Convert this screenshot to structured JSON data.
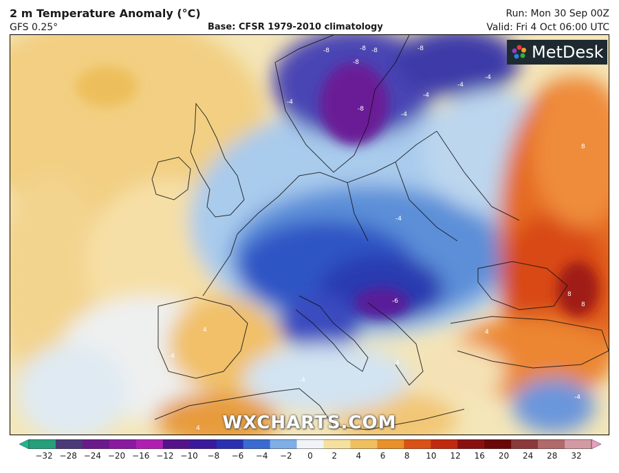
{
  "header": {
    "title": "2 m Temperature Anomaly (°C)",
    "model": "GFS 0.25°",
    "base": "Base: CFSR 1979-2010 climatology",
    "run": "Run: Mon 30 Sep 00Z",
    "valid": "Valid: Fri 4 Oct 06:00 UTC"
  },
  "brand": {
    "label": "MetDesk"
  },
  "watermark": {
    "label": "WXCHARTS.COM"
  },
  "colorbar": {
    "ticks": [
      "−32",
      "−28",
      "−24",
      "−20",
      "−16",
      "−12",
      "−10",
      "−8",
      "−6",
      "−4",
      "−2",
      "0",
      "2",
      "4",
      "6",
      "8",
      "10",
      "12",
      "16",
      "20",
      "24",
      "28",
      "32"
    ],
    "colors": [
      "#1db892",
      "#25a07a",
      "#4a3a78",
      "#6a1a8a",
      "#8a1aa0",
      "#b020b0",
      "#55138a",
      "#3a1a9a",
      "#2a30b0",
      "#3b6ad0",
      "#80aee6",
      "#f0f4f8",
      "#f5e0a0",
      "#efc060",
      "#e8902a",
      "#d85218",
      "#c02a10",
      "#8a1010",
      "#6a0808",
      "#8a3a3a",
      "#b06a6a",
      "#d49aa4",
      "#e8a0c0"
    ]
  },
  "contour_labels": [
    "-8",
    "-8",
    "-8",
    "-8",
    "-8",
    "-4",
    "-4",
    "-4",
    "-4",
    "-4",
    "-8",
    "-6",
    "-4",
    "8",
    "8",
    "8",
    "4",
    "4",
    "4",
    "-4",
    "-4",
    "-4",
    "4",
    "4"
  ]
}
